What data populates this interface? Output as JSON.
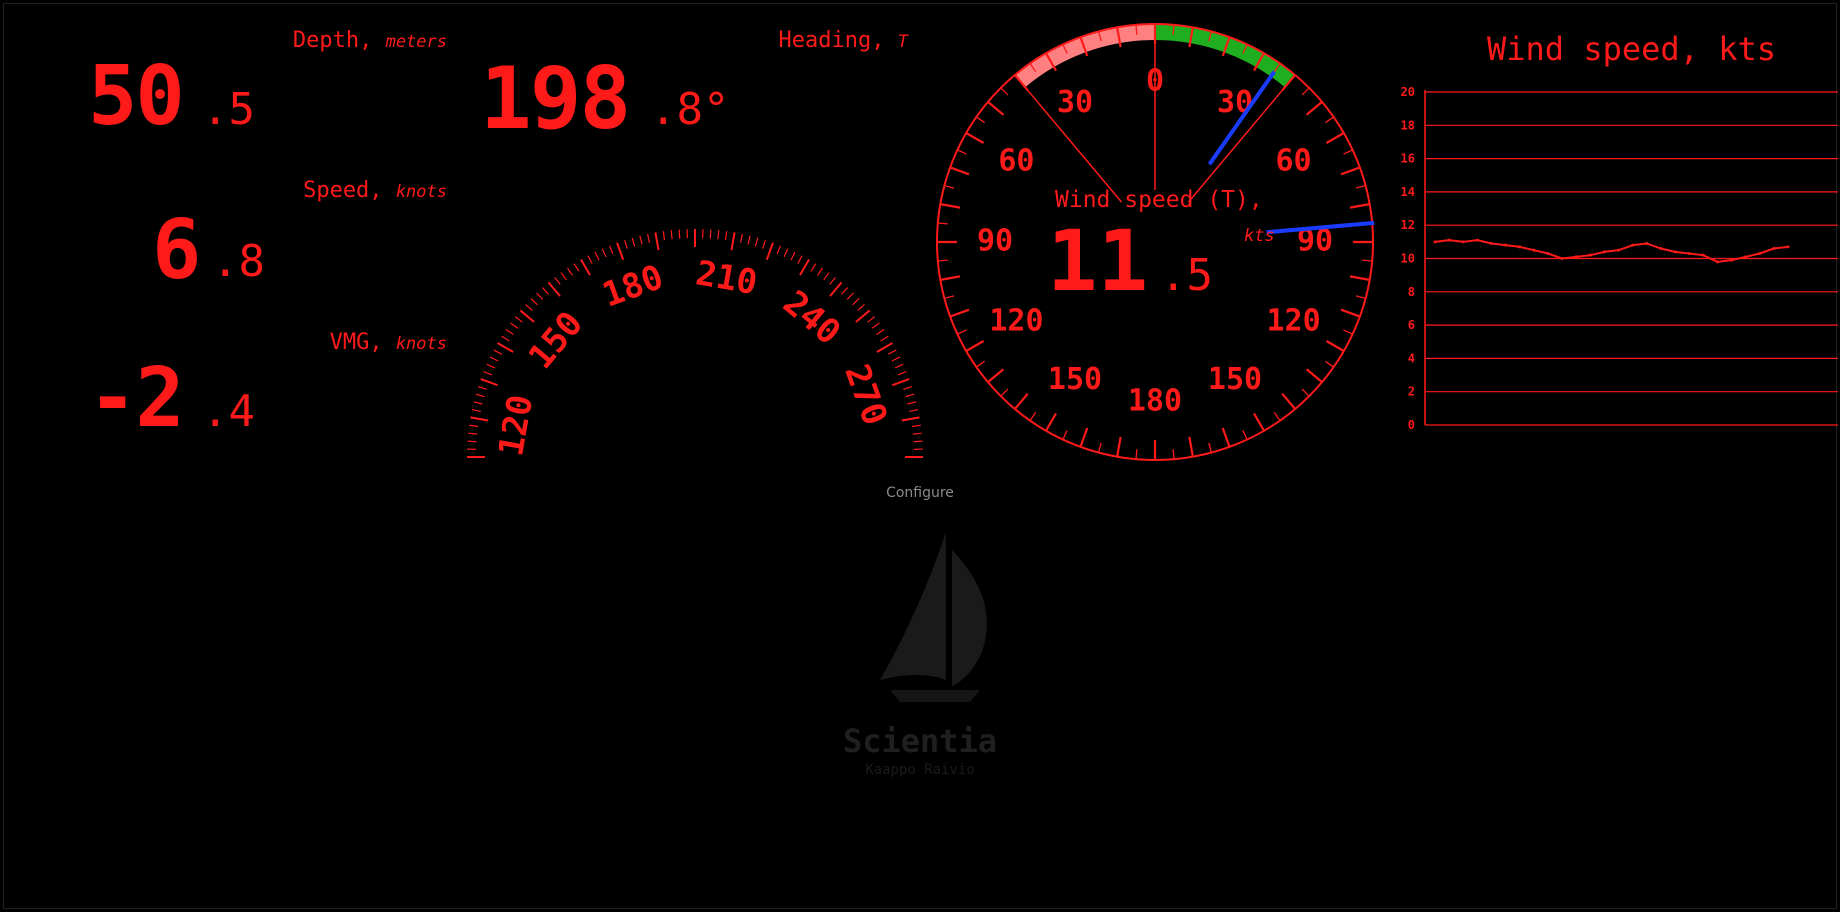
{
  "colors": {
    "instrument": "#ff1a1a",
    "needle": "#1a3cff",
    "starboard": "#1fae1f",
    "port": "#ff8080",
    "background": "#000000"
  },
  "depth": {
    "label": "Depth,",
    "unit": "meters",
    "int": "50",
    "frac": ".5"
  },
  "speed": {
    "label": "Speed,",
    "unit": "knots",
    "int": "6",
    "frac": ".8"
  },
  "vmg": {
    "label": "VMG,",
    "unit": "knots",
    "int": "-2",
    "frac": ".4"
  },
  "heading": {
    "label": "Heading,",
    "unit": "T",
    "int": "198",
    "frac": ".8°",
    "compass_labels": [
      "120",
      "150",
      "180",
      "210",
      "240",
      "270"
    ]
  },
  "wind_dial": {
    "label": "Wind speed (T),",
    "unit": "kts",
    "int": "11",
    "frac": ".5",
    "angle_labels": [
      "0",
      "30",
      "60",
      "90",
      "120",
      "150",
      "180",
      "150",
      "120",
      "90",
      "60",
      "30"
    ],
    "apparent_angle_deg": 35,
    "true_angle_deg": 85
  },
  "chart_data": {
    "type": "line",
    "title": "Wind speed, kts",
    "ylim": [
      0,
      20
    ],
    "y_ticks": [
      "20",
      "18",
      "16",
      "14",
      "12",
      "10",
      "8",
      "6",
      "4",
      "2",
      "0"
    ],
    "grid": "horizontal",
    "series": [
      {
        "values": [
          11.0,
          11.1,
          11.0,
          11.1,
          10.9,
          10.8,
          10.7,
          10.5,
          10.3,
          10.0,
          10.1,
          10.2,
          10.4,
          10.5,
          10.8,
          10.9,
          10.6,
          10.4,
          10.3,
          10.2,
          9.8,
          9.9,
          10.1,
          10.3,
          10.6,
          10.7
        ]
      }
    ]
  },
  "configure_label": "Configure",
  "brand": {
    "name": "Scientia",
    "author": "Kaappo Raivio"
  }
}
